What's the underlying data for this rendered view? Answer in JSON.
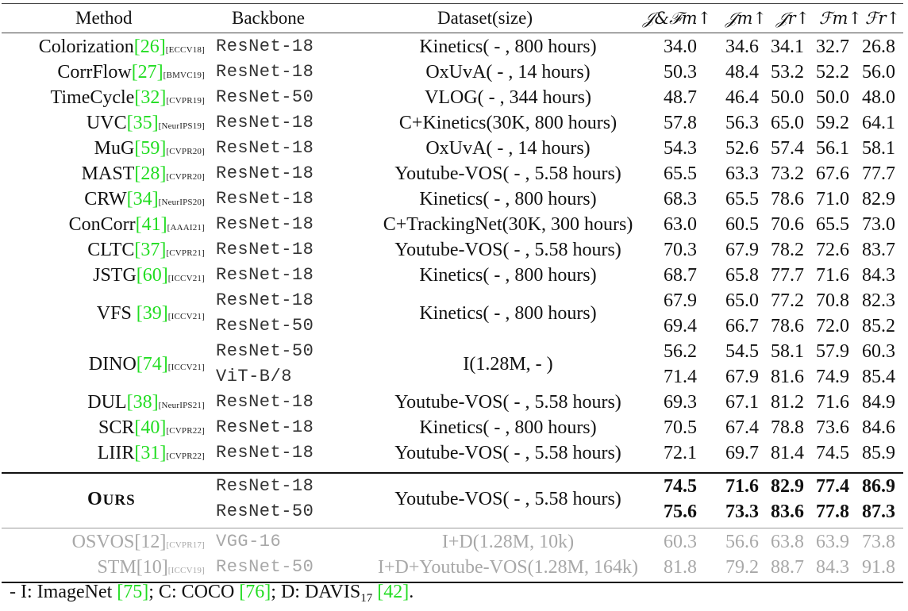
{
  "table": {
    "headers": {
      "method": "Method",
      "backbone": "Backbone",
      "dataset": "Dataset(size)",
      "jf": "𝒥&ℱm↑",
      "jm": "𝒥m↑",
      "jr": "𝒥r↑",
      "fm": "ℱm↑",
      "fr": "ℱr↑"
    },
    "groups": [
      {
        "method": "Colorization",
        "cite": "[26]",
        "venue": "[ECCV18]",
        "rows": [
          {
            "backbone": "ResNet-18",
            "jf": "34.0",
            "jm": "34.6",
            "jr": "34.1",
            "fm": "32.7",
            "fr": "26.8"
          }
        ],
        "dataset": "Kinetics( - , 800 hours)"
      },
      {
        "method": "CorrFlow",
        "cite": "[27]",
        "venue": "[BMVC19]",
        "rows": [
          {
            "backbone": "ResNet-18",
            "jf": "50.3",
            "jm": "48.4",
            "jr": "53.2",
            "fm": "52.2",
            "fr": "56.0"
          }
        ],
        "dataset": "OxUvA( - , 14 hours)"
      },
      {
        "method": "TimeCycle",
        "cite": "[32]",
        "venue": "[CVPR19]",
        "rows": [
          {
            "backbone": "ResNet-50",
            "jf": "48.7",
            "jm": "46.4",
            "jr": "50.0",
            "fm": "50.0",
            "fr": "48.0"
          }
        ],
        "dataset": "VLOG( - , 344 hours)"
      },
      {
        "method": "UVC",
        "cite": "[35]",
        "venue": "[NeurIPS19]",
        "rows": [
          {
            "backbone": "ResNet-18",
            "jf": "57.8",
            "jm": "56.3",
            "jr": "65.0",
            "fm": "59.2",
            "fr": "64.1"
          }
        ],
        "dataset": "C+Kinetics(30K, 800 hours)"
      },
      {
        "method": "MuG",
        "cite": "[59]",
        "venue": "[CVPR20]",
        "rows": [
          {
            "backbone": "ResNet-18",
            "jf": "54.3",
            "jm": "52.6",
            "jr": "57.4",
            "fm": "56.1",
            "fr": "58.1"
          }
        ],
        "dataset": "OxUvA( - , 14 hours)"
      },
      {
        "method": "MAST",
        "cite": "[28]",
        "venue": "[CVPR20]",
        "rows": [
          {
            "backbone": "ResNet-18",
            "jf": "65.5",
            "jm": "63.3",
            "jr": "73.2",
            "fm": "67.6",
            "fr": "77.7"
          }
        ],
        "dataset": "Youtube-VOS( - , 5.58 hours)"
      },
      {
        "method": "CRW",
        "cite": "[34]",
        "venue": "[NeurIPS20]",
        "rows": [
          {
            "backbone": "ResNet-18",
            "jf": "68.3",
            "jm": "65.5",
            "jr": "78.6",
            "fm": "71.0",
            "fr": "82.9"
          }
        ],
        "dataset": "Kinetics( - , 800 hours)"
      },
      {
        "method": "ConCorr",
        "cite": "[41]",
        "venue": "[AAAI21]",
        "rows": [
          {
            "backbone": "ResNet-18",
            "jf": "63.0",
            "jm": "60.5",
            "jr": "70.6",
            "fm": "65.5",
            "fr": "73.0"
          }
        ],
        "dataset": "C+TrackingNet(30K, 300 hours)"
      },
      {
        "method": "CLTC",
        "cite": "[37]",
        "venue": "[CVPR21]",
        "rows": [
          {
            "backbone": "ResNet-18",
            "jf": "70.3",
            "jm": "67.9",
            "jr": "78.2",
            "fm": "72.6",
            "fr": "83.7"
          }
        ],
        "dataset": "Youtube-VOS( - , 5.58 hours)"
      },
      {
        "method": "JSTG",
        "cite": "[60]",
        "venue": "[ICCV21]",
        "rows": [
          {
            "backbone": "ResNet-18",
            "jf": "68.7",
            "jm": "65.8",
            "jr": "77.7",
            "fm": "71.6",
            "fr": "84.3"
          }
        ],
        "dataset": "Kinetics( - , 800 hours)"
      },
      {
        "method": "VFS ",
        "cite": "[39]",
        "venue": "[ICCV21]",
        "rows": [
          {
            "backbone": "ResNet-18",
            "jf": "67.9",
            "jm": "65.0",
            "jr": "77.2",
            "fm": "70.8",
            "fr": "82.3"
          },
          {
            "backbone": "ResNet-50",
            "jf": "69.4",
            "jm": "66.7",
            "jr": "78.6",
            "fm": "72.0",
            "fr": "85.2"
          }
        ],
        "dataset": "Kinetics( - , 800 hours)"
      },
      {
        "method": "DINO",
        "cite": "[74]",
        "venue": "[ICCV21]",
        "rows": [
          {
            "backbone": "ResNet-50",
            "jf": "56.2",
            "jm": "54.5",
            "jr": "58.1",
            "fm": "57.9",
            "fr": "60.3"
          },
          {
            "backbone": "ViT-B/8",
            "jf": "71.4",
            "jm": "67.9",
            "jr": "81.6",
            "fm": "74.9",
            "fr": "85.4"
          }
        ],
        "dataset": "I(1.28M, - )"
      },
      {
        "method": "DUL",
        "cite": "[38]",
        "venue": "[NeurIPS21]",
        "rows": [
          {
            "backbone": "ResNet-18",
            "jf": "69.3",
            "jm": "67.1",
            "jr": "81.2",
            "fm": "71.6",
            "fr": "84.9"
          }
        ],
        "dataset": "Youtube-VOS( - , 5.58 hours)"
      },
      {
        "method": "SCR",
        "cite": "[40]",
        "venue": "[CVPR22]",
        "rows": [
          {
            "backbone": "ResNet-18",
            "jf": "70.5",
            "jm": "67.4",
            "jr": "78.8",
            "fm": "73.6",
            "fr": "84.6"
          }
        ],
        "dataset": "Kinetics( - , 800 hours)"
      },
      {
        "method": "LIIR",
        "cite": "[31]",
        "venue": "[CVPR22]",
        "rows": [
          {
            "backbone": "ResNet-18",
            "jf": "72.1",
            "jm": "69.7",
            "jr": "81.4",
            "fm": "74.5",
            "fr": "85.9"
          }
        ],
        "dataset": "Youtube-VOS( - , 5.58 hours)"
      }
    ],
    "ours": {
      "label_o": "O",
      "label_rest": "URS",
      "rows": [
        {
          "backbone": "ResNet-18",
          "jf": "74.5",
          "jm": "71.6",
          "jr": "82.9",
          "fm": "77.4",
          "fr": "86.9"
        },
        {
          "backbone": "ResNet-50",
          "jf": "75.6",
          "jm": "73.3",
          "jr": "83.6",
          "fm": "77.8",
          "fr": "87.3"
        }
      ],
      "dataset": "Youtube-VOS( - , 5.58 hours)"
    },
    "supervised": [
      {
        "method": "OSVOS",
        "cite": "[12]",
        "venue": "[CVPR17]",
        "backbone": "VGG-16",
        "dataset": "I+D(1.28M, 10k)",
        "jf": "60.3",
        "jm": "56.6",
        "jr": "63.8",
        "fm": "63.9",
        "fr": "73.8"
      },
      {
        "method": "STM",
        "cite": "[10]",
        "venue": "[ICCV19]",
        "backbone": "ResNet-50",
        "dataset": "I+D+Youtube-VOS(1.28M, 164k)",
        "jf": "81.8",
        "jm": "79.2",
        "jr": "88.7",
        "fm": "84.3",
        "fr": "91.8"
      }
    ]
  },
  "footnote": {
    "prefix": "- I: ImageNet ",
    "c1": "[75]",
    "mid1": "; C: COCO ",
    "c2": "[76]",
    "mid2": "; D: DAVIS",
    "sub": "17",
    "c3": "[42]",
    "end": "."
  }
}
